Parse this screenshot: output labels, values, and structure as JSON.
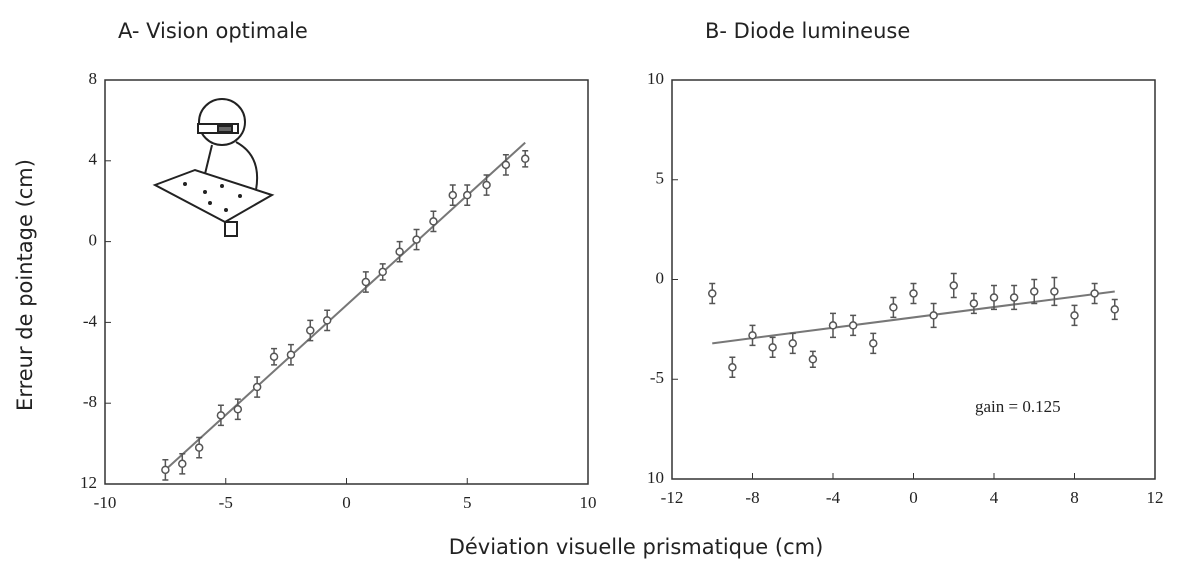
{
  "xlabel": "Déviation visuelle prismatique (cm)",
  "ylabel": "Erreur de pointage (cm)",
  "chart_data": [
    {
      "type": "scatter",
      "title": "A- Vision optimale",
      "xlim": [
        -10,
        10
      ],
      "xticks": [
        -10,
        -5,
        0,
        5,
        10
      ],
      "ylim": [
        -12,
        8
      ],
      "yticks": [
        8,
        4,
        0,
        -4,
        -8,
        {
          "value": -12,
          "label": "12"
        }
      ],
      "color": "#555555",
      "x": [
        -7.5,
        -6.8,
        -6.1,
        -5.2,
        -4.5,
        -3.7,
        -3,
        -2.3,
        -1.5,
        -0.8,
        0.8,
        1.5,
        2.2,
        2.9,
        3.6,
        4.4,
        5,
        5.8,
        6.6,
        7.4
      ],
      "values": [
        -11.3,
        -11,
        -10.2,
        -8.6,
        -8.3,
        -7.2,
        -5.7,
        -5.6,
        -4.4,
        -3.9,
        -2,
        -1.5,
        -0.5,
        0.1,
        1,
        2.3,
        2.3,
        2.8,
        3.8,
        4.1
      ],
      "errors": [
        0.5,
        0.5,
        0.5,
        0.5,
        0.5,
        0.5,
        0.4,
        0.5,
        0.5,
        0.5,
        0.5,
        0.4,
        0.5,
        0.5,
        0.5,
        0.5,
        0.5,
        0.5,
        0.5,
        0.4
      ],
      "fit": {
        "x": [
          -7.5,
          7.4
        ],
        "y": [
          -11.3,
          4.9
        ]
      }
    },
    {
      "type": "scatter",
      "title": "B- Diode lumineuse",
      "annotation": "gain = 0.125",
      "xlim": [
        -12,
        12
      ],
      "xticks": [
        -12,
        -8,
        -4,
        0,
        4,
        8,
        12
      ],
      "ylim": [
        -10,
        10
      ],
      "yticks": [
        10,
        5,
        0,
        -5,
        {
          "value": -10,
          "label": "10"
        }
      ],
      "color": "#555555",
      "x": [
        -10,
        -9,
        -8,
        -7,
        -6,
        -5,
        -4,
        -3,
        -2,
        -1,
        0,
        1,
        2,
        3,
        4,
        5,
        6,
        7,
        8,
        9,
        10
      ],
      "values": [
        -0.7,
        -4.4,
        -2.8,
        -3.4,
        -3.2,
        -4,
        -2.3,
        -2.3,
        -3.2,
        -1.4,
        -0.7,
        -1.8,
        -0.3,
        -1.2,
        -0.9,
        -0.9,
        -0.6,
        -0.6,
        -1.8,
        -0.7,
        -1.5
      ],
      "errors": [
        0.5,
        0.5,
        0.5,
        0.5,
        0.5,
        0.4,
        0.6,
        0.5,
        0.5,
        0.5,
        0.5,
        0.6,
        0.6,
        0.5,
        0.6,
        0.6,
        0.6,
        0.7,
        0.5,
        0.5,
        0.5
      ],
      "fit": {
        "x": [
          -10,
          10
        ],
        "y": [
          -3.2,
          -0.6
        ]
      }
    }
  ]
}
